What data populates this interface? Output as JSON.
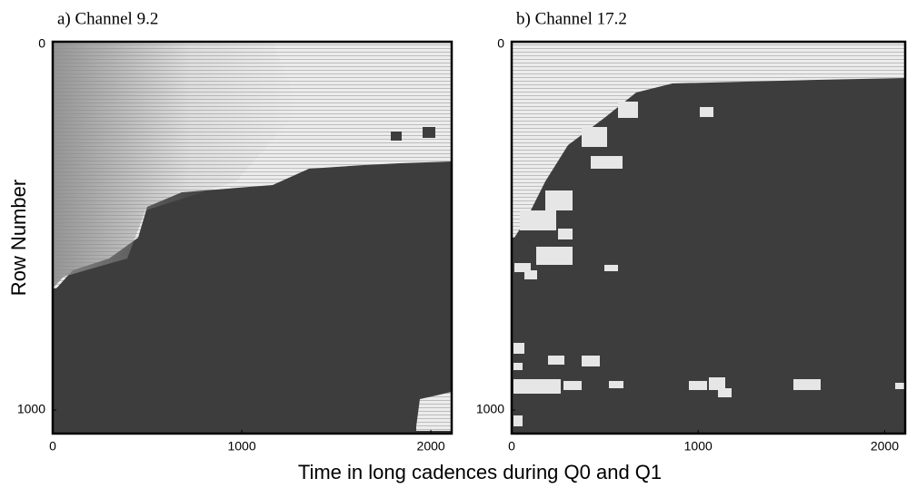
{
  "figure": {
    "xlabel": "Time in long cadences during Q0 and Q1",
    "ylabel": "Row Number"
  },
  "chart_data": [
    {
      "type": "heatmap",
      "title": "a) Channel 9.2",
      "xlim": [
        0,
        2110
      ],
      "xticks": [
        0,
        1000,
        2000
      ],
      "ylim": [
        1064,
        0
      ],
      "yticks": [
        0,
        1000
      ]
    },
    {
      "type": "heatmap",
      "title": "b) Channel 17.2",
      "xlim": [
        0,
        2110
      ],
      "xticks": [
        0,
        1000,
        2000
      ],
      "ylim": [
        1064,
        0
      ],
      "yticks": [
        0,
        1000
      ]
    }
  ]
}
